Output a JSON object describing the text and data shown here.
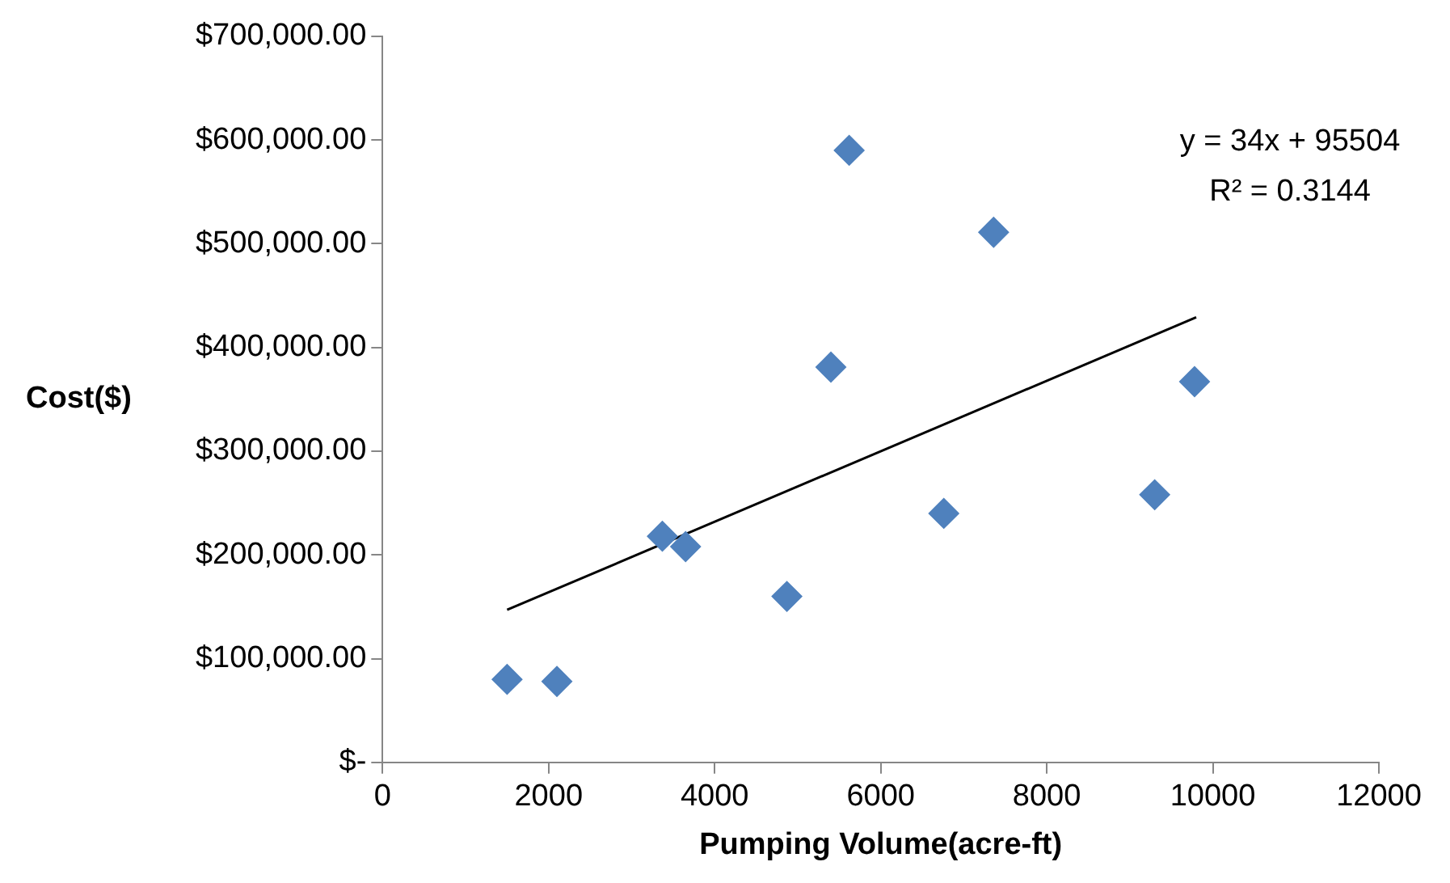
{
  "chart_data": {
    "type": "scatter",
    "xlabel": "Pumping Volume(acre-ft)",
    "ylabel": "Cost($)",
    "grid": false,
    "legend": false,
    "xlim": [
      0,
      12000
    ],
    "xticks": [
      0,
      2000,
      4000,
      6000,
      8000,
      10000,
      12000
    ],
    "ylim": [
      0,
      700000
    ],
    "yticks": [
      {
        "value": 0,
        "label": "$-"
      },
      {
        "value": 100000,
        "label": "$100,000.00"
      },
      {
        "value": 200000,
        "label": "$200,000.00"
      },
      {
        "value": 300000,
        "label": "$300,000.00"
      },
      {
        "value": 400000,
        "label": "$400,000.00"
      },
      {
        "value": 500000,
        "label": "$500,000.00"
      },
      {
        "value": 600000,
        "label": "$600,000.00"
      },
      {
        "value": 700000,
        "label": "$700,000.00"
      }
    ],
    "series": [
      {
        "color": "#4f81bd",
        "marker": "diamond",
        "x": [
          1500,
          2100,
          3370,
          3650,
          4870,
          5400,
          5620,
          6760,
          7360,
          9300,
          9780
        ],
        "values": [
          80000,
          78000,
          218000,
          208000,
          160000,
          381000,
          590000,
          240000,
          511000,
          258000,
          367000
        ]
      },
      {
        "type": "line",
        "color": "#000000",
        "marker": "none",
        "x": [
          1500,
          9800
        ],
        "values": [
          147000,
          429000
        ]
      }
    ],
    "annotations": [
      "y = 34x + 95504",
      "R² = 0.3144"
    ]
  }
}
